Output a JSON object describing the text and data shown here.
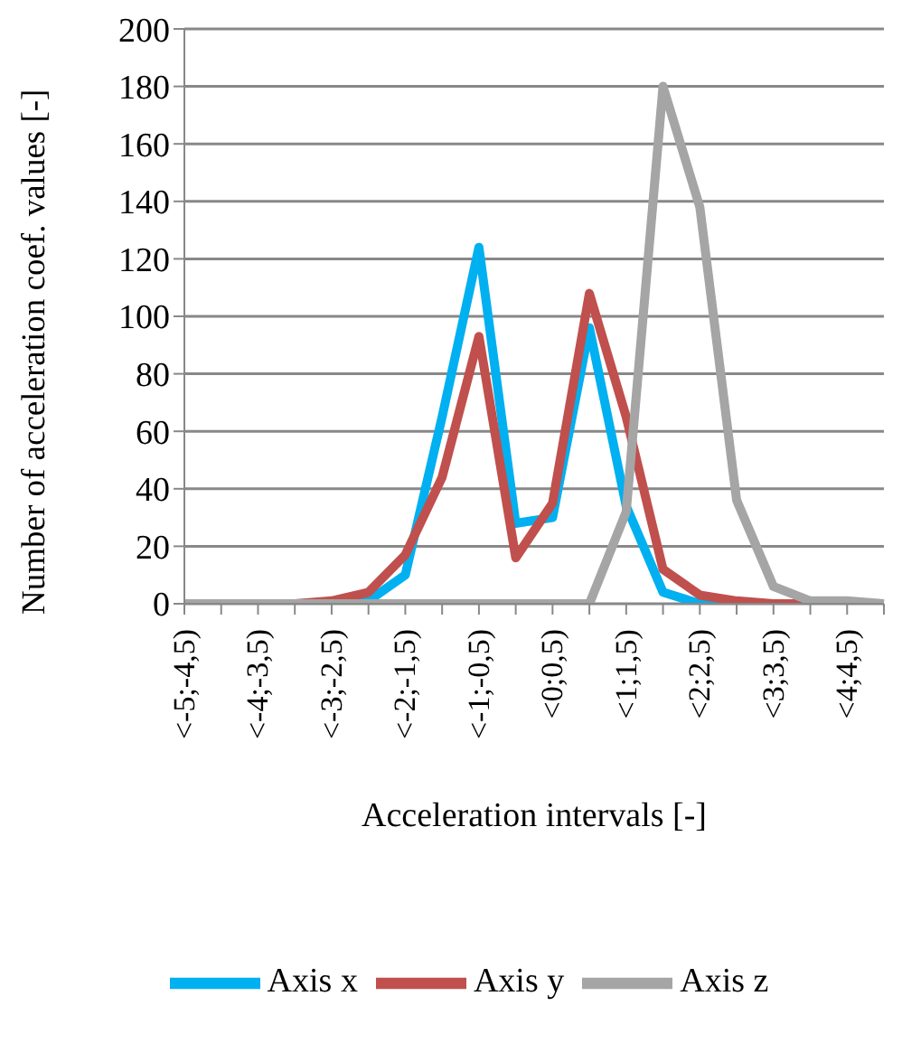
{
  "chart_data": {
    "type": "line",
    "xlabel": "Acceleration intervals [-]",
    "ylabel": "Number of acceleration coef. values [-]",
    "categories": [
      "<-5;-4,5)",
      null,
      "<-4;-3,5)",
      null,
      "<-3;-2,5)",
      null,
      "<-2;-1,5)",
      null,
      "<-1;-0,5)",
      null,
      "<0;0,5)",
      null,
      "<1;1,5)",
      null,
      "<2;2,5)",
      null,
      "<3;3,5)",
      null,
      "<4;4,5)",
      null
    ],
    "series": [
      {
        "name": "Axis x",
        "color": "#00b0f0",
        "values": [
          null,
          null,
          null,
          null,
          0,
          1,
          10,
          65,
          124,
          28,
          30,
          96,
          34,
          4,
          0,
          0,
          0,
          null,
          null,
          null
        ]
      },
      {
        "name": "Axis y",
        "color": "#c0504d",
        "values": [
          null,
          null,
          0,
          0,
          1,
          4,
          17,
          44,
          93,
          16,
          35,
          108,
          65,
          12,
          3,
          1,
          0,
          0,
          0,
          0
        ]
      },
      {
        "name": "Axis z",
        "color": "#a5a5a5",
        "values": [
          0,
          0,
          0,
          0,
          0,
          0,
          0,
          0,
          0,
          0,
          0,
          0,
          32,
          180,
          138,
          36,
          6,
          1,
          1,
          0
        ]
      }
    ],
    "ylim": [
      0,
      200
    ],
    "yticks": [
      0,
      20,
      40,
      60,
      80,
      100,
      120,
      140,
      160,
      180,
      200
    ],
    "grid": "y",
    "legend": "bottom",
    "marker": "none",
    "line_style": "solid"
  }
}
